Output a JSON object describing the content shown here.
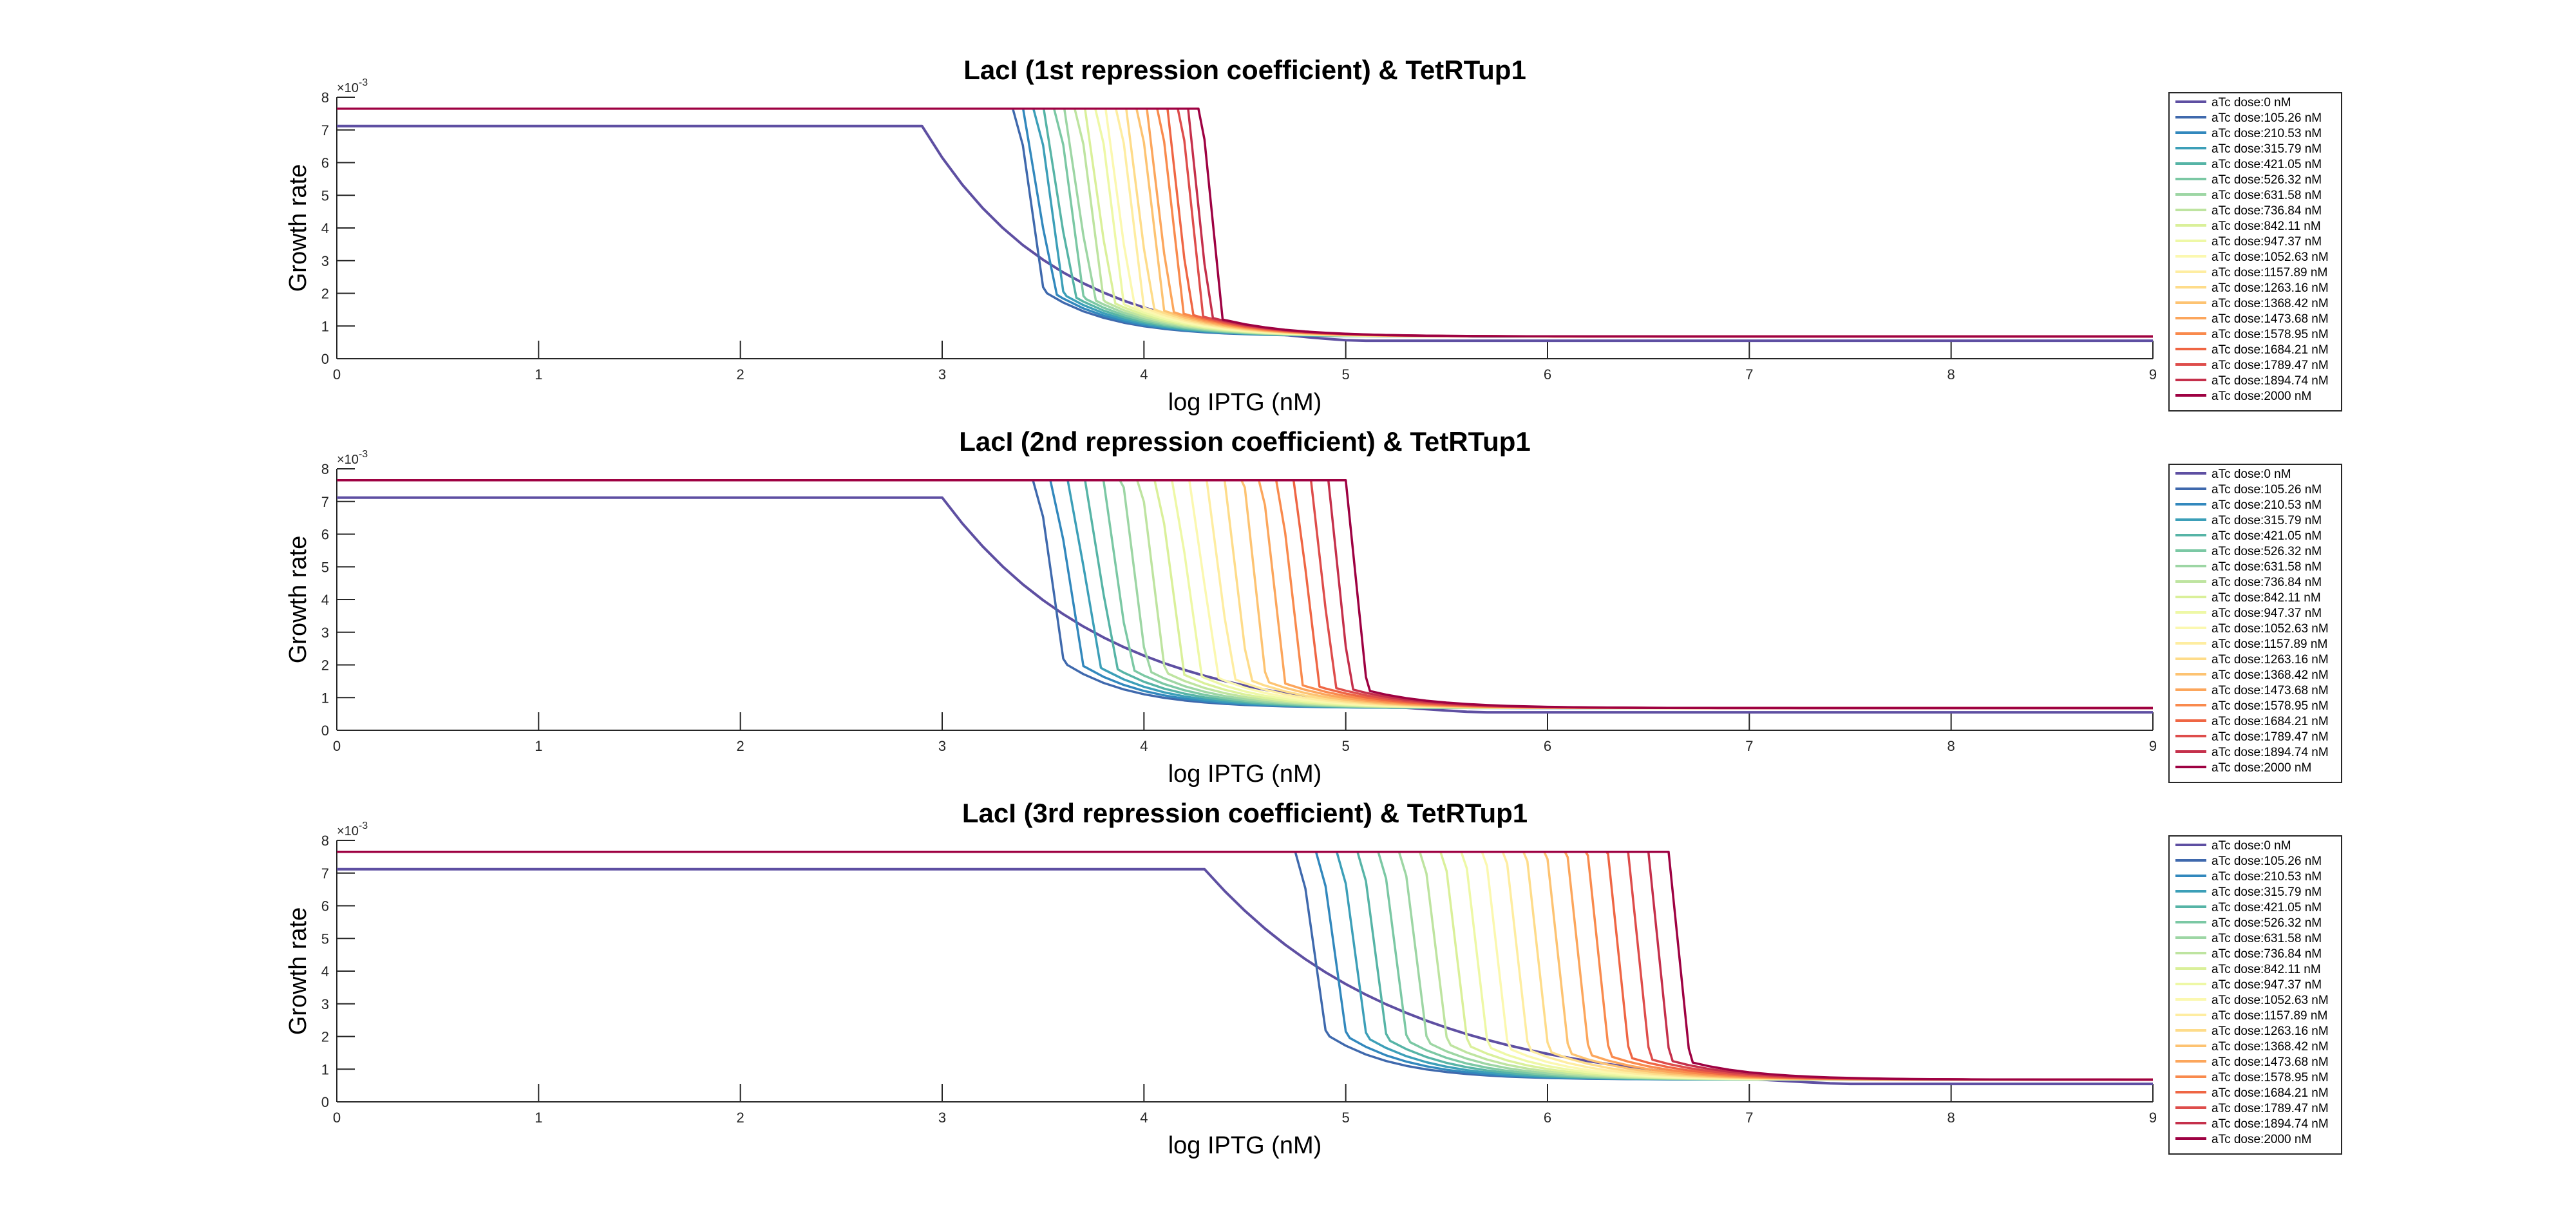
{
  "chart_data": [
    {
      "type": "line",
      "title": "LacI (1st repression coefficient) & TetRTup1",
      "xlabel": "log IPTG (nM)",
      "ylabel": "Growth rate",
      "y_exponent_base": "×10",
      "y_exponent_power": "-3",
      "xlim": [
        0,
        9
      ],
      "ylim": [
        0,
        0.008
      ],
      "xticks": [
        "0",
        "1",
        "2",
        "3",
        "4",
        "5",
        "6",
        "7",
        "8",
        "9"
      ],
      "yticks": [
        "0",
        "1",
        "2",
        "3",
        "4",
        "5",
        "6",
        "7",
        "8"
      ],
      "curve": {
        "first_start": 2.9,
        "first_shape": "gradual",
        "last_start": 4.27,
        "end_x": 5.0
      },
      "legend_position": "outside-right",
      "series_names": [
        "aTc dose:0 nM",
        "aTc dose:105.26 nM",
        "aTc dose:210.53 nM",
        "aTc dose:315.79 nM",
        "aTc dose:421.05 nM",
        "aTc dose:526.32 nM",
        "aTc dose:631.58 nM",
        "aTc dose:736.84 nM",
        "aTc dose:842.11 nM",
        "aTc dose:947.37 nM",
        "aTc dose:1052.63 nM",
        "aTc dose:1157.89 nM",
        "aTc dose:1263.16 nM",
        "aTc dose:1368.42 nM",
        "aTc dose:1473.68 nM",
        "aTc dose:1578.95 nM",
        "aTc dose:1684.21 nM",
        "aTc dose:1789.47 nM",
        "aTc dose:1894.74 nM",
        "aTc dose:2000 nM"
      ]
    },
    {
      "type": "line",
      "title": "LacI (2nd repression coefficient) & TetRTup1",
      "xlabel": "log IPTG (nM)",
      "ylabel": "Growth rate",
      "y_exponent_base": "×10",
      "y_exponent_power": "-3",
      "xlim": [
        0,
        9
      ],
      "ylim": [
        0,
        0.008
      ],
      "xticks": [
        "0",
        "1",
        "2",
        "3",
        "4",
        "5",
        "6",
        "7",
        "8",
        "9"
      ],
      "yticks": [
        "0",
        "1",
        "2",
        "3",
        "4",
        "5",
        "6",
        "7",
        "8"
      ],
      "curve": {
        "first_start": 3.0,
        "first_shape": "smooth",
        "last_start": 5.0,
        "end_x": 5.6
      },
      "legend_position": "outside-right",
      "series_names": [
        "aTc dose:0 nM",
        "aTc dose:105.26 nM",
        "aTc dose:210.53 nM",
        "aTc dose:315.79 nM",
        "aTc dose:421.05 nM",
        "aTc dose:526.32 nM",
        "aTc dose:631.58 nM",
        "aTc dose:736.84 nM",
        "aTc dose:842.11 nM",
        "aTc dose:947.37 nM",
        "aTc dose:1052.63 nM",
        "aTc dose:1157.89 nM",
        "aTc dose:1263.16 nM",
        "aTc dose:1368.42 nM",
        "aTc dose:1473.68 nM",
        "aTc dose:1578.95 nM",
        "aTc dose:1684.21 nM",
        "aTc dose:1789.47 nM",
        "aTc dose:1894.74 nM",
        "aTc dose:2000 nM"
      ]
    },
    {
      "type": "line",
      "title": "LacI (3rd repression coefficient) & TetRTup1",
      "xlabel": "log IPTG (nM)",
      "ylabel": "Growth rate",
      "y_exponent_base": "×10",
      "y_exponent_power": "-3",
      "xlim": [
        0,
        9
      ],
      "ylim": [
        0,
        0.008
      ],
      "xticks": [
        "0",
        "1",
        "2",
        "3",
        "4",
        "5",
        "6",
        "7",
        "8",
        "9"
      ],
      "yticks": [
        "0",
        "1",
        "2",
        "3",
        "4",
        "5",
        "6",
        "7",
        "8"
      ],
      "curve": {
        "first_start": 4.3,
        "first_shape": "smooth",
        "last_start": 6.6,
        "end_x": 7.4
      },
      "legend_position": "outside-right",
      "series_names": [
        "aTc dose:0 nM",
        "aTc dose:105.26 nM",
        "aTc dose:210.53 nM",
        "aTc dose:315.79 nM",
        "aTc dose:421.05 nM",
        "aTc dose:526.32 nM",
        "aTc dose:631.58 nM",
        "aTc dose:736.84 nM",
        "aTc dose:842.11 nM",
        "aTc dose:947.37 nM",
        "aTc dose:1052.63 nM",
        "aTc dose:1157.89 nM",
        "aTc dose:1263.16 nM",
        "aTc dose:1368.42 nM",
        "aTc dose:1473.68 nM",
        "aTc dose:1578.95 nM",
        "aTc dose:1684.21 nM",
        "aTc dose:1789.47 nM",
        "aTc dose:1894.74 nM",
        "aTc dose:2000 nM"
      ]
    }
  ],
  "series_style": {
    "palette": [
      "#5E4FA2",
      "#3F69AD",
      "#3288BD",
      "#3C9FB8",
      "#56B4A6",
      "#7BC8A4",
      "#9DD6A4",
      "#BEE4A0",
      "#DAF09A",
      "#EEF8A6",
      "#FBF8B0",
      "#FEEDA1",
      "#FEDC8A",
      "#FDC372",
      "#FCA65C",
      "#F98A4D",
      "#EF6644",
      "#DE4D4B",
      "#C5304B",
      "#9E0142"
    ],
    "high_value": 0.00765,
    "low_value": 0.00068,
    "first_high_value": 0.00712,
    "first_low_value": 0.00055
  }
}
